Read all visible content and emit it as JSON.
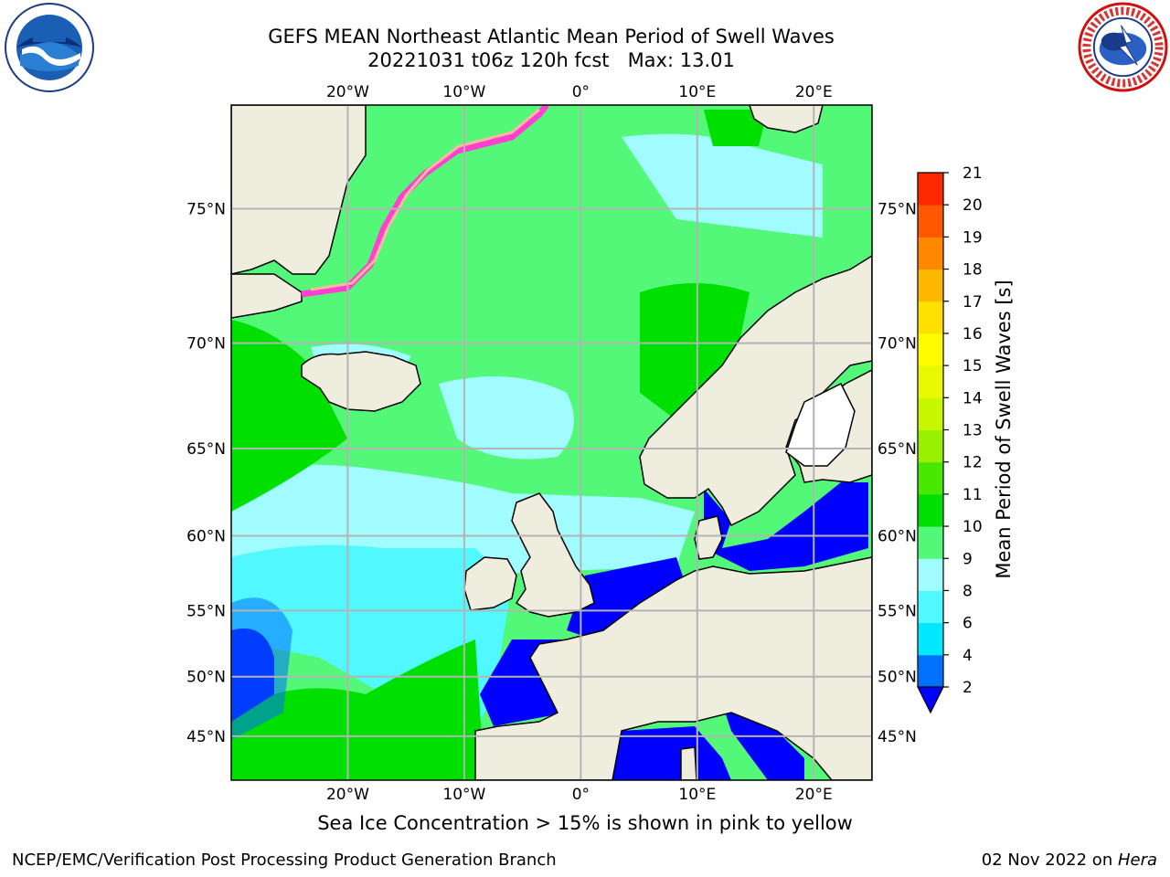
{
  "header": {
    "title_line1": "GEFS MEAN Northeast Atlantic Mean Period of Swell Waves",
    "title_line2": "20221031 t06z 120h fcst   Max: 13.01"
  },
  "map": {
    "lon_range": [
      -30,
      25
    ],
    "lat_range": [
      41,
      78
    ],
    "lon_ticks": [
      {
        "value": -20,
        "label": "20°W"
      },
      {
        "value": -10,
        "label": "10°W"
      },
      {
        "value": 0,
        "label": "0°"
      },
      {
        "value": 10,
        "label": "10°E"
      },
      {
        "value": 20,
        "label": "20°E"
      }
    ],
    "lat_ticks": [
      {
        "value": 45,
        "label": "45°N"
      },
      {
        "value": 50,
        "label": "50°N"
      },
      {
        "value": 55,
        "label": "55°N"
      },
      {
        "value": 60,
        "label": "60°N"
      },
      {
        "value": 65,
        "label": "65°N"
      },
      {
        "value": 70,
        "label": "70°N"
      },
      {
        "value": 75,
        "label": "75°N"
      }
    ],
    "land_color": "#efedde",
    "grid_color": "#b4b4b4"
  },
  "colorbar": {
    "label": "Mean Period of Swell Waves [s]",
    "levels": [
      "2",
      "4",
      "6",
      "8",
      "9",
      "10",
      "11",
      "12",
      "13",
      "14",
      "15",
      "16",
      "17",
      "18",
      "19",
      "20",
      "21"
    ],
    "colors": [
      "#0070ff",
      "#00e8ff",
      "#52f8ff",
      "#a0fcff",
      "#54f878",
      "#00e000",
      "#48e800",
      "#98f000",
      "#c8f800",
      "#e8f800",
      "#fffc00",
      "#ffe000",
      "#ffb800",
      "#ff8800",
      "#ff5800",
      "#ff2800"
    ],
    "under_color": "#0000ff"
  },
  "caption": "Sea Ice Concentration > 15% is shown in pink to yellow",
  "footer": {
    "left": "NCEP/EMC/Verification Post Processing Product Generation Branch",
    "right_prefix": "02 Nov 2022 on ",
    "right_host": "Hera"
  }
}
